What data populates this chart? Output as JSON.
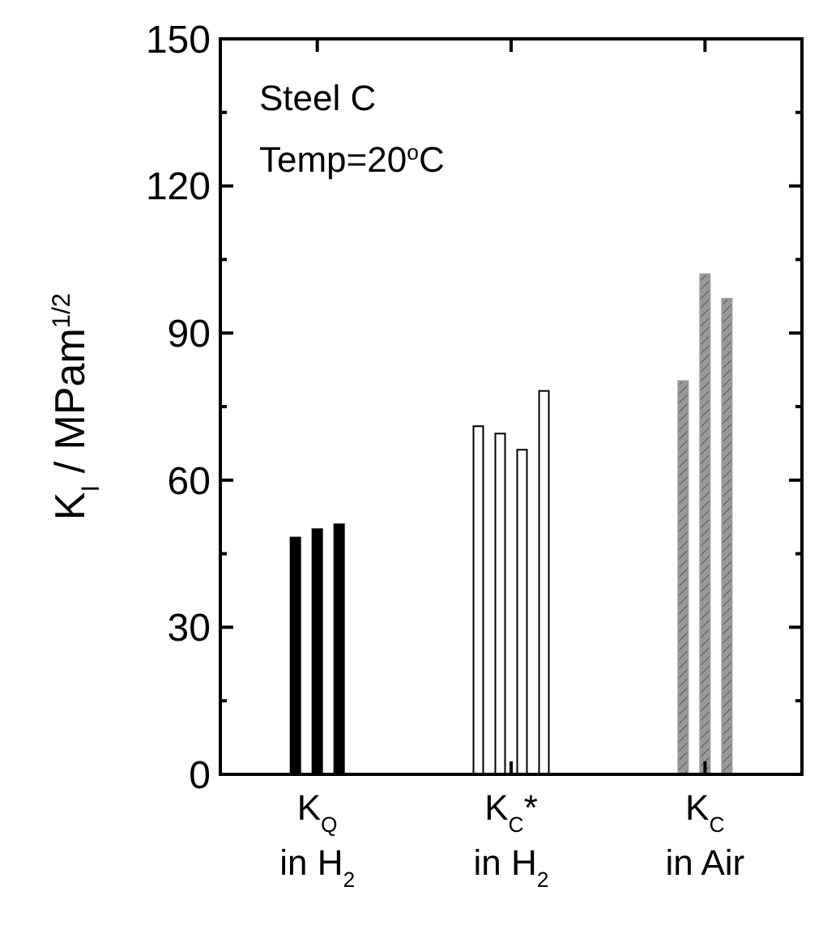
{
  "chart_data": {
    "type": "bar",
    "ylabel": "K$_{I}$ / MPam$^{1/2}$",
    "categories": [
      "K$_{Q}$\nin H$_{2}$",
      "K$_{C}$*\nin H$_{2}$",
      "K$_{C}$\nin Air"
    ],
    "series": [
      {
        "colors": [
          "#000000",
          "#ffffff",
          "#999999"
        ],
        "values": [
          48.3,
          71,
          80.2
        ]
      },
      {
        "colors": [
          "#000000",
          "#ffffff",
          "#999999"
        ],
        "values": [
          50,
          69.5,
          102
        ]
      },
      {
        "colors": [
          "#000000",
          "#ffffff",
          "#999999"
        ],
        "values": [
          51,
          66.2,
          97
        ]
      },
      {
        "colors": [
          null,
          "#ffffff",
          null
        ],
        "values": [
          null,
          78.2,
          null
        ]
      }
    ],
    "ylim": [
      0,
      150
    ],
    "yticks": [
      0,
      {
        "value": 15,
        "label": null
      },
      30,
      {
        "value": 45,
        "label": null
      },
      60,
      {
        "value": 75,
        "label": null
      },
      90,
      {
        "value": 105,
        "label": null
      },
      120,
      {
        "value": 135,
        "label": null
      },
      150
    ],
    "grid": false,
    "annotations": [
      "Steel C",
      "Temp=20$^{o}$C"
    ]
  }
}
